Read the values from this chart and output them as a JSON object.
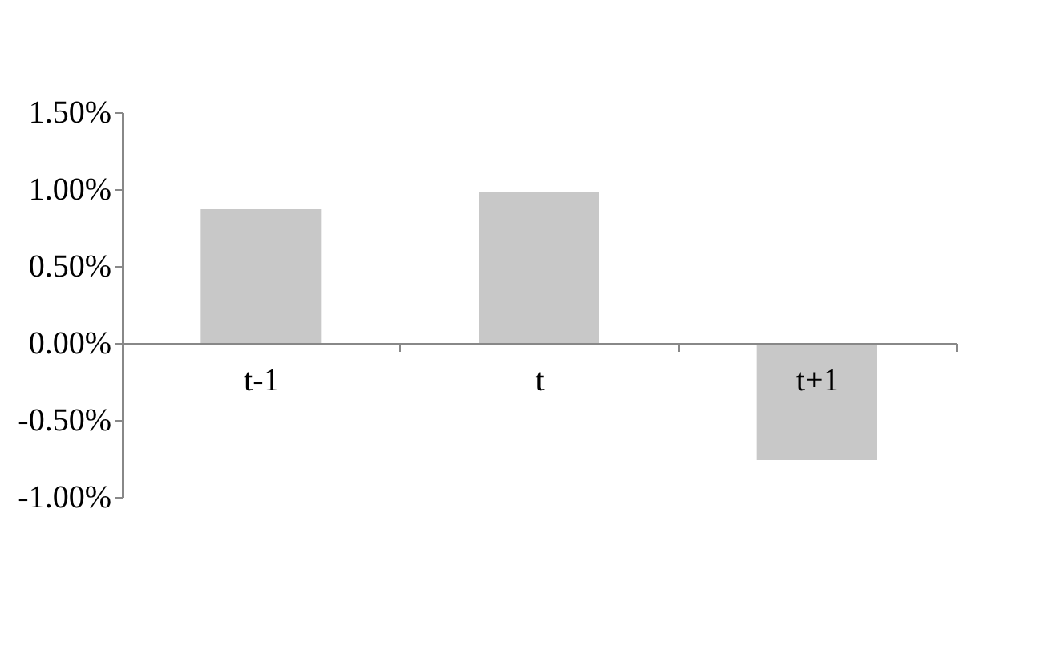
{
  "chart_data": {
    "type": "bar",
    "categories": [
      "t-1",
      "t",
      "t+1"
    ],
    "series": [
      {
        "color": "#c8c8c8",
        "values": [
          0.87,
          0.98,
          -0.76
        ]
      }
    ],
    "ylim": [
      -1.0,
      1.5
    ],
    "yticks": [
      {
        "value": -1.0,
        "label": "-1.00%"
      },
      {
        "value": -0.5,
        "label": "-0.50%"
      },
      {
        "value": 0.0,
        "label": "0.00%"
      },
      {
        "value": 0.5,
        "label": "0.50%"
      },
      {
        "value": 1.0,
        "label": "1.00%"
      },
      {
        "value": 1.5,
        "label": "1.50%"
      }
    ],
    "grid": false,
    "legend": false
  }
}
